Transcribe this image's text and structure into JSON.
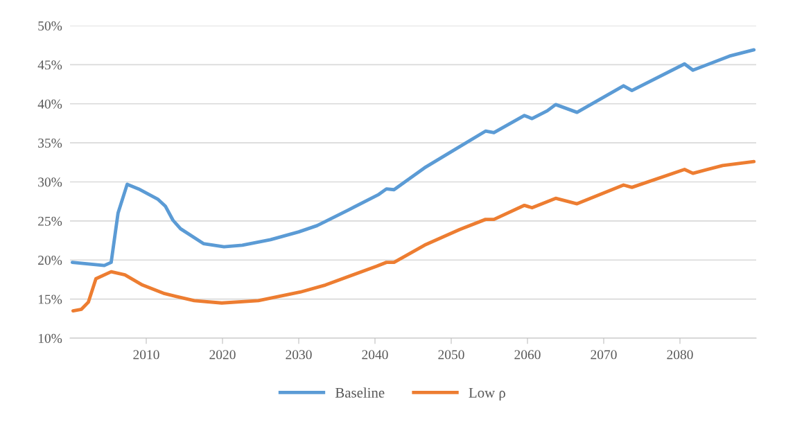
{
  "chart_data": {
    "type": "line",
    "legend": "bottom",
    "grid": "y",
    "line_style": "solid",
    "marker": "none",
    "xlim": [
      2000,
      2090
    ],
    "xticks": [
      2010,
      2020,
      2030,
      2040,
      2050,
      2060,
      2070,
      2080
    ],
    "ylim": [
      10,
      50
    ],
    "yticks": [
      {
        "value": 10,
        "label": "10%"
      },
      {
        "value": 15,
        "label": "15%"
      },
      {
        "value": 20,
        "label": "20%"
      },
      {
        "value": 25,
        "label": "25%"
      },
      {
        "value": 30,
        "label": "30%"
      },
      {
        "value": 35,
        "label": "35%"
      },
      {
        "value": 40,
        "label": "40%"
      },
      {
        "value": 45,
        "label": "45%"
      },
      {
        "value": 50,
        "label": "50%"
      }
    ],
    "series": [
      {
        "name": "Baseline",
        "color": "#5b9bd5",
        "x": [
          2000.3,
          2004.5,
          2005.4,
          2006.3,
          2007.5,
          2009,
          2011.5,
          2012.5,
          2013.5,
          2014.5,
          2017.5,
          2020.2,
          2022.6,
          2026.3,
          2030,
          2032.4,
          2036.5,
          2040.5,
          2041.5,
          2042.5,
          2046.5,
          2049.9,
          2054.5,
          2055.6,
          2059.6,
          2060.6,
          2062.6,
          2063.7,
          2066.5,
          2072.6,
          2073.7,
          2080.6,
          2081.7,
          2086.5,
          2089.7
        ],
        "values": [
          19.7,
          19.3,
          19.7,
          26.0,
          29.7,
          29.1,
          27.8,
          26.9,
          25.1,
          24.0,
          22.1,
          21.7,
          21.9,
          22.6,
          23.6,
          24.4,
          26.4,
          28.4,
          29.1,
          29.0,
          31.8,
          33.8,
          36.5,
          36.3,
          38.5,
          38.1,
          39.1,
          39.9,
          38.9,
          42.3,
          41.7,
          45.1,
          44.3,
          46.1,
          46.9
        ]
      },
      {
        "name": "Low ρ",
        "color": "#ed7d31",
        "x": [
          2000.4,
          2001.5,
          2002.4,
          2003.4,
          2005.4,
          2007.2,
          2009.5,
          2012.4,
          2016.3,
          2019.9,
          2024.7,
          2030.2,
          2033.5,
          2040.2,
          2041.5,
          2042.5,
          2046.5,
          2051.1,
          2054.5,
          2055.6,
          2059.6,
          2060.6,
          2063.7,
          2066.5,
          2072.6,
          2073.7,
          2080.6,
          2081.7,
          2085.6,
          2089.7
        ],
        "values": [
          13.5,
          13.7,
          14.6,
          17.6,
          18.5,
          18.1,
          16.8,
          15.7,
          14.8,
          14.5,
          14.8,
          15.9,
          16.8,
          19.2,
          19.7,
          19.7,
          21.9,
          23.9,
          25.2,
          25.2,
          27.0,
          26.7,
          27.9,
          27.2,
          29.6,
          29.3,
          31.6,
          31.1,
          32.1,
          32.6
        ]
      }
    ]
  }
}
